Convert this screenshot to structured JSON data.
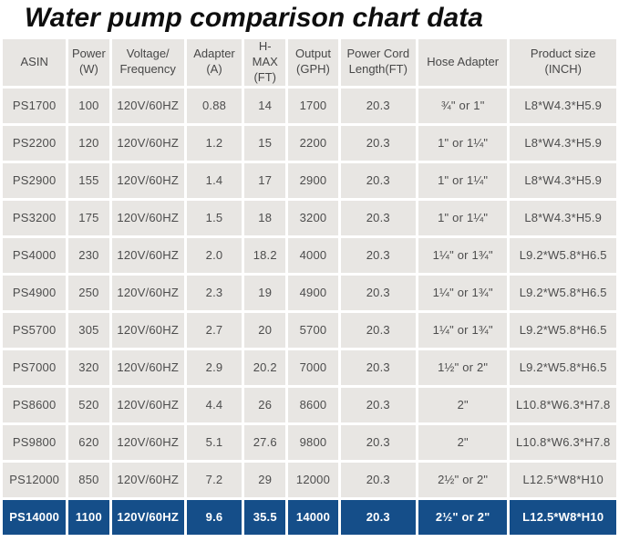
{
  "title": "Water pump comparison chart data",
  "colors": {
    "highlight_row_bg": "#154e89",
    "highlight_row_text": "#ffffff",
    "cell_bg": "#e8e6e3",
    "cell_text": "#4d4d4d",
    "page_bg": "#ffffff"
  },
  "chart_data": {
    "type": "table",
    "title": "Water pump comparison chart data",
    "columns": [
      "ASIN",
      "Power\n(W)",
      "Voltage/\nFrequency",
      "Adapter\n(A)",
      "H-MAX\n(FT)",
      "Output\n(GPH)",
      "Power Cord\nLength(FT)",
      "Hose Adapter",
      "Product size\n(INCH)"
    ],
    "rows": [
      [
        "PS1700",
        "100",
        "120V/60HZ",
        "0.88",
        "14",
        "1700",
        "20.3",
        "¾\" or 1\"",
        "L8*W4.3*H5.9"
      ],
      [
        "PS2200",
        "120",
        "120V/60HZ",
        "1.2",
        "15",
        "2200",
        "20.3",
        "1\" or 1¼\"",
        "L8*W4.3*H5.9"
      ],
      [
        "PS2900",
        "155",
        "120V/60HZ",
        "1.4",
        "17",
        "2900",
        "20.3",
        "1\" or 1¼\"",
        "L8*W4.3*H5.9"
      ],
      [
        "PS3200",
        "175",
        "120V/60HZ",
        "1.5",
        "18",
        "3200",
        "20.3",
        "1\" or 1¼\"",
        "L8*W4.3*H5.9"
      ],
      [
        "PS4000",
        "230",
        "120V/60HZ",
        "2.0",
        "18.2",
        "4000",
        "20.3",
        "1¼\" or 1¾\"",
        "L9.2*W5.8*H6.5"
      ],
      [
        "PS4900",
        "250",
        "120V/60HZ",
        "2.3",
        "19",
        "4900",
        "20.3",
        "1¼\" or 1¾\"",
        "L9.2*W5.8*H6.5"
      ],
      [
        "PS5700",
        "305",
        "120V/60HZ",
        "2.7",
        "20",
        "5700",
        "20.3",
        "1¼\" or 1¾\"",
        "L9.2*W5.8*H6.5"
      ],
      [
        "PS7000",
        "320",
        "120V/60HZ",
        "2.9",
        "20.2",
        "7000",
        "20.3",
        "1½\" or 2\"",
        "L9.2*W5.8*H6.5"
      ],
      [
        "PS8600",
        "520",
        "120V/60HZ",
        "4.4",
        "26",
        "8600",
        "20.3",
        "2\"",
        "L10.8*W6.3*H7.8"
      ],
      [
        "PS9800",
        "620",
        "120V/60HZ",
        "5.1",
        "27.6",
        "9800",
        "20.3",
        "2\"",
        "L10.8*W6.3*H7.8"
      ],
      [
        "PS12000",
        "850",
        "120V/60HZ",
        "7.2",
        "29",
        "12000",
        "20.3",
        "2½\" or 2\"",
        "L12.5*W8*H10"
      ],
      [
        "PS14000",
        "1100",
        "120V/60HZ",
        "9.6",
        "35.5",
        "14000",
        "20.3",
        "2½\" or 2\"",
        "L12.5*W8*H10"
      ]
    ],
    "highlighted_row": "PS14000"
  }
}
